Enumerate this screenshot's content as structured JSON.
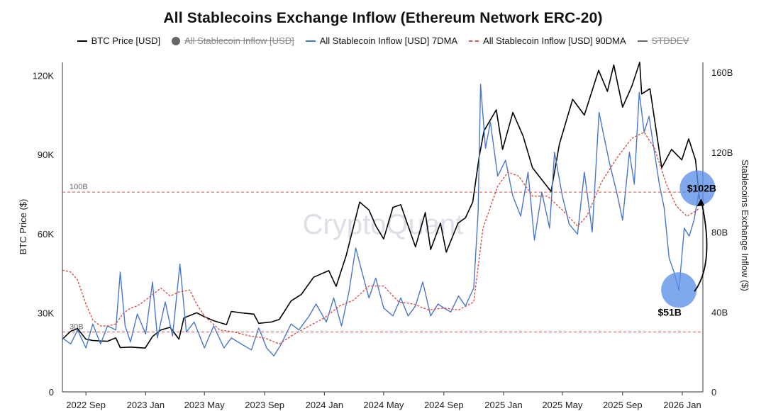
{
  "chart_data": {
    "type": "line",
    "title": "All Stablecoins Exchange Inflow (Ethereum Network ERC-20)",
    "ylabel_left": "BTC Price ($)",
    "ylabel_right": "Stablecoins Exchange Inflow ($)",
    "ylim_left": [
      0,
      125000
    ],
    "ylim_right": [
      0,
      165
    ],
    "left_ticks": [
      {
        "v": 0,
        "label": "0"
      },
      {
        "v": 30000,
        "label": "30K"
      },
      {
        "v": 60000,
        "label": "60K"
      },
      {
        "v": 90000,
        "label": "90K"
      },
      {
        "v": 120000,
        "label": "120K"
      }
    ],
    "right_ticks": [
      {
        "v": 0,
        "label": "0"
      },
      {
        "v": 40,
        "label": "40B"
      },
      {
        "v": 80,
        "label": "80B"
      },
      {
        "v": 120,
        "label": "120B"
      },
      {
        "v": 160,
        "label": "160B"
      }
    ],
    "xlim": [
      "2022-07-15",
      "2026-02-12"
    ],
    "x_ticks": [
      {
        "date": "2022-09-01",
        "label": "2022 Sep"
      },
      {
        "date": "2023-01-01",
        "label": "2023 Jan"
      },
      {
        "date": "2023-05-01",
        "label": "2023 May"
      },
      {
        "date": "2023-09-01",
        "label": "2023 Sep"
      },
      {
        "date": "2024-01-01",
        "label": "2024 Jan"
      },
      {
        "date": "2024-05-01",
        "label": "2024 May"
      },
      {
        "date": "2024-09-01",
        "label": "2024 Sep"
      },
      {
        "date": "2025-01-01",
        "label": "2025 Jan"
      },
      {
        "date": "2025-05-01",
        "label": "2025 May"
      },
      {
        "date": "2025-09-01",
        "label": "2025 Sep"
      },
      {
        "date": "2026-01-01",
        "label": "2026 Jan"
      }
    ],
    "legend_position": "top",
    "legend": [
      {
        "name": "BTC Price [USD]",
        "style": "line",
        "color": "#000000",
        "visible": true
      },
      {
        "name": "All Stablecoin Inflow [USD]",
        "style": "dot",
        "color": "#666666",
        "visible": false
      },
      {
        "name": "All Stablecoin Inflow [USD] 7DMA",
        "style": "line",
        "color": "#4a78c8",
        "visible": true
      },
      {
        "name": "All Stablecoin Inflow [USD] 90DMA",
        "style": "dashed",
        "color": "#d9534f",
        "visible": true
      },
      {
        "name": "STDDEV",
        "style": "line",
        "color": "#666666",
        "visible": false
      }
    ],
    "reference_lines": [
      {
        "value": 100,
        "label": "100B",
        "color": "#d9534f"
      },
      {
        "value": 30,
        "label": "30B",
        "color": "#d9534f"
      }
    ],
    "series": [
      {
        "name": "BTC Price [USD]",
        "axis": "left",
        "color": "#000000",
        "points": [
          [
            "2022-07-15",
            20000
          ],
          [
            "2022-08-01",
            23000
          ],
          [
            "2022-08-15",
            24000
          ],
          [
            "2022-09-01",
            20000
          ],
          [
            "2022-09-15",
            19500
          ],
          [
            "2022-10-01",
            19300
          ],
          [
            "2022-10-15",
            19200
          ],
          [
            "2022-11-01",
            20500
          ],
          [
            "2022-11-10",
            16800
          ],
          [
            "2022-12-01",
            17000
          ],
          [
            "2022-12-31",
            16600
          ],
          [
            "2023-01-15",
            21000
          ],
          [
            "2023-02-01",
            23500
          ],
          [
            "2023-02-20",
            24500
          ],
          [
            "2023-03-10",
            20000
          ],
          [
            "2023-03-20",
            28000
          ],
          [
            "2023-04-15",
            30000
          ],
          [
            "2023-05-01",
            28500
          ],
          [
            "2023-05-20",
            27000
          ],
          [
            "2023-06-15",
            25500
          ],
          [
            "2023-06-25",
            30500
          ],
          [
            "2023-07-15",
            30000
          ],
          [
            "2023-08-10",
            29500
          ],
          [
            "2023-08-20",
            26000
          ],
          [
            "2023-09-15",
            26500
          ],
          [
            "2023-10-01",
            27500
          ],
          [
            "2023-10-25",
            34500
          ],
          [
            "2023-11-15",
            37000
          ],
          [
            "2023-12-10",
            43500
          ],
          [
            "2024-01-10",
            46000
          ],
          [
            "2024-01-25",
            40000
          ],
          [
            "2024-02-15",
            52000
          ],
          [
            "2024-03-13",
            72000
          ],
          [
            "2024-04-01",
            69000
          ],
          [
            "2024-04-15",
            63000
          ],
          [
            "2024-05-01",
            58000
          ],
          [
            "2024-05-20",
            70000
          ],
          [
            "2024-06-05",
            71000
          ],
          [
            "2024-07-05",
            55000
          ],
          [
            "2024-07-25",
            68000
          ],
          [
            "2024-08-05",
            54000
          ],
          [
            "2024-08-25",
            64000
          ],
          [
            "2024-09-06",
            53000
          ],
          [
            "2024-09-30",
            64000
          ],
          [
            "2024-10-15",
            66000
          ],
          [
            "2024-10-30",
            72000
          ],
          [
            "2024-11-12",
            89000
          ],
          [
            "2024-11-22",
            99000
          ],
          [
            "2024-12-17",
            107000
          ],
          [
            "2024-12-30",
            92000
          ],
          [
            "2025-01-20",
            106000
          ],
          [
            "2025-02-10",
            97000
          ],
          [
            "2025-03-01",
            85000
          ],
          [
            "2025-04-08",
            76000
          ],
          [
            "2025-04-25",
            94000
          ],
          [
            "2025-05-22",
            111000
          ],
          [
            "2025-06-15",
            105000
          ],
          [
            "2025-07-14",
            122000
          ],
          [
            "2025-08-01",
            114000
          ],
          [
            "2025-08-14",
            124000
          ],
          [
            "2025-09-01",
            108000
          ],
          [
            "2025-09-20",
            116000
          ],
          [
            "2025-10-06",
            125000
          ],
          [
            "2025-10-10",
            113000
          ],
          [
            "2025-10-27",
            115000
          ],
          [
            "2025-11-20",
            85000
          ],
          [
            "2025-12-10",
            92000
          ],
          [
            "2025-12-31",
            88000
          ],
          [
            "2026-01-14",
            96000
          ],
          [
            "2026-01-28",
            88000
          ],
          [
            "2026-02-05",
            73000
          ]
        ]
      },
      {
        "name": "All Stablecoin Inflow [USD] 7DMA",
        "axis": "right",
        "color": "#4a78c8",
        "points": [
          [
            "2022-07-15",
            27
          ],
          [
            "2022-08-01",
            24
          ],
          [
            "2022-08-15",
            31
          ],
          [
            "2022-09-01",
            22
          ],
          [
            "2022-09-15",
            34
          ],
          [
            "2022-10-01",
            24
          ],
          [
            "2022-10-15",
            33
          ],
          [
            "2022-11-01",
            31
          ],
          [
            "2022-11-10",
            60
          ],
          [
            "2022-11-20",
            33
          ],
          [
            "2022-12-01",
            25
          ],
          [
            "2022-12-15",
            39
          ],
          [
            "2023-01-01",
            29
          ],
          [
            "2023-01-15",
            55
          ],
          [
            "2023-01-25",
            27
          ],
          [
            "2023-02-10",
            45
          ],
          [
            "2023-02-25",
            28
          ],
          [
            "2023-03-12",
            64
          ],
          [
            "2023-03-25",
            30
          ],
          [
            "2023-04-10",
            35
          ],
          [
            "2023-05-01",
            22
          ],
          [
            "2023-05-20",
            33
          ],
          [
            "2023-06-10",
            22
          ],
          [
            "2023-06-25",
            27
          ],
          [
            "2023-07-15",
            24
          ],
          [
            "2023-08-05",
            21
          ],
          [
            "2023-08-20",
            32
          ],
          [
            "2023-09-05",
            22
          ],
          [
            "2023-09-20",
            18
          ],
          [
            "2023-10-05",
            24
          ],
          [
            "2023-10-25",
            34
          ],
          [
            "2023-11-10",
            31
          ],
          [
            "2023-12-01",
            38
          ],
          [
            "2023-12-15",
            44
          ],
          [
            "2024-01-05",
            35
          ],
          [
            "2024-01-20",
            47
          ],
          [
            "2024-02-05",
            33
          ],
          [
            "2024-02-20",
            50
          ],
          [
            "2024-03-05",
            72
          ],
          [
            "2024-03-20",
            58
          ],
          [
            "2024-04-01",
            47
          ],
          [
            "2024-04-15",
            57
          ],
          [
            "2024-05-01",
            42
          ],
          [
            "2024-05-20",
            38
          ],
          [
            "2024-06-05",
            47
          ],
          [
            "2024-06-20",
            38
          ],
          [
            "2024-07-05",
            43
          ],
          [
            "2024-07-20",
            55
          ],
          [
            "2024-08-05",
            38
          ],
          [
            "2024-08-20",
            44
          ],
          [
            "2024-09-01",
            42
          ],
          [
            "2024-09-15",
            40
          ],
          [
            "2024-10-01",
            48
          ],
          [
            "2024-10-15",
            43
          ],
          [
            "2024-11-01",
            52
          ],
          [
            "2024-11-10",
            90
          ],
          [
            "2024-11-15",
            154
          ],
          [
            "2024-11-25",
            122
          ],
          [
            "2024-12-05",
            135
          ],
          [
            "2024-12-20",
            108
          ],
          [
            "2025-01-05",
            116
          ],
          [
            "2025-01-20",
            98
          ],
          [
            "2025-02-05",
            88
          ],
          [
            "2025-02-20",
            110
          ],
          [
            "2025-03-05",
            76
          ],
          [
            "2025-03-20",
            100
          ],
          [
            "2025-04-05",
            82
          ],
          [
            "2025-04-15",
            120
          ],
          [
            "2025-05-01",
            98
          ],
          [
            "2025-05-15",
            84
          ],
          [
            "2025-06-01",
            79
          ],
          [
            "2025-06-15",
            110
          ],
          [
            "2025-07-01",
            80
          ],
          [
            "2025-07-15",
            140
          ],
          [
            "2025-07-25",
            128
          ],
          [
            "2025-08-05",
            115
          ],
          [
            "2025-08-20",
            100
          ],
          [
            "2025-09-01",
            86
          ],
          [
            "2025-09-15",
            120
          ],
          [
            "2025-09-25",
            104
          ],
          [
            "2025-10-05",
            150
          ],
          [
            "2025-10-15",
            130
          ],
          [
            "2025-10-25",
            138
          ],
          [
            "2025-11-05",
            120
          ],
          [
            "2025-11-15",
            104
          ],
          [
            "2025-11-25",
            92
          ],
          [
            "2025-12-05",
            67
          ],
          [
            "2025-12-15",
            60
          ],
          [
            "2025-12-25",
            51
          ],
          [
            "2026-01-05",
            82
          ],
          [
            "2026-01-15",
            78
          ],
          [
            "2026-01-25",
            86
          ],
          [
            "2026-02-05",
            102
          ]
        ]
      },
      {
        "name": "All Stablecoin Inflow [USD] 90DMA",
        "axis": "right",
        "color": "#d9534f",
        "points": [
          [
            "2022-07-15",
            61
          ],
          [
            "2022-08-01",
            60
          ],
          [
            "2022-08-15",
            56
          ],
          [
            "2022-09-01",
            44
          ],
          [
            "2022-09-15",
            36
          ],
          [
            "2022-10-01",
            33
          ],
          [
            "2022-10-15",
            33
          ],
          [
            "2022-11-01",
            34
          ],
          [
            "2022-11-15",
            39
          ],
          [
            "2022-12-01",
            42
          ],
          [
            "2022-12-15",
            43
          ],
          [
            "2023-01-01",
            46
          ],
          [
            "2023-02-01",
            52
          ],
          [
            "2023-02-20",
            48
          ],
          [
            "2023-03-10",
            50
          ],
          [
            "2023-04-01",
            51
          ],
          [
            "2023-04-15",
            44
          ],
          [
            "2023-05-01",
            38
          ],
          [
            "2023-06-01",
            31
          ],
          [
            "2023-07-01",
            30
          ],
          [
            "2023-08-01",
            28
          ],
          [
            "2023-09-01",
            27
          ],
          [
            "2023-10-01",
            24
          ],
          [
            "2023-11-01",
            29
          ],
          [
            "2023-12-01",
            33
          ],
          [
            "2024-01-01",
            37
          ],
          [
            "2024-02-01",
            43
          ],
          [
            "2024-03-01",
            46
          ],
          [
            "2024-04-01",
            53
          ],
          [
            "2024-05-01",
            53
          ],
          [
            "2024-06-01",
            45
          ],
          [
            "2024-07-01",
            44
          ],
          [
            "2024-08-01",
            41
          ],
          [
            "2024-09-01",
            42
          ],
          [
            "2024-10-01",
            41
          ],
          [
            "2024-11-01",
            45
          ],
          [
            "2024-11-20",
            82
          ],
          [
            "2024-12-20",
            103
          ],
          [
            "2025-01-10",
            110
          ],
          [
            "2025-02-01",
            108
          ],
          [
            "2025-03-01",
            98
          ],
          [
            "2025-04-01",
            98
          ],
          [
            "2025-05-01",
            91
          ],
          [
            "2025-06-01",
            83
          ],
          [
            "2025-06-20",
            88
          ],
          [
            "2025-07-20",
            105
          ],
          [
            "2025-08-20",
            117
          ],
          [
            "2025-09-20",
            127
          ],
          [
            "2025-10-15",
            130
          ],
          [
            "2025-11-05",
            122
          ],
          [
            "2025-12-01",
            103
          ],
          [
            "2025-12-20",
            93
          ],
          [
            "2026-01-10",
            88
          ],
          [
            "2026-01-25",
            90
          ],
          [
            "2026-02-05",
            92
          ]
        ]
      }
    ],
    "annotations": [
      {
        "label": "$102B",
        "date": "2026-02-01",
        "value": 102
      },
      {
        "label": "$51B",
        "date": "2025-12-25",
        "value": 51
      }
    ],
    "watermark": "CryptoQuant"
  }
}
